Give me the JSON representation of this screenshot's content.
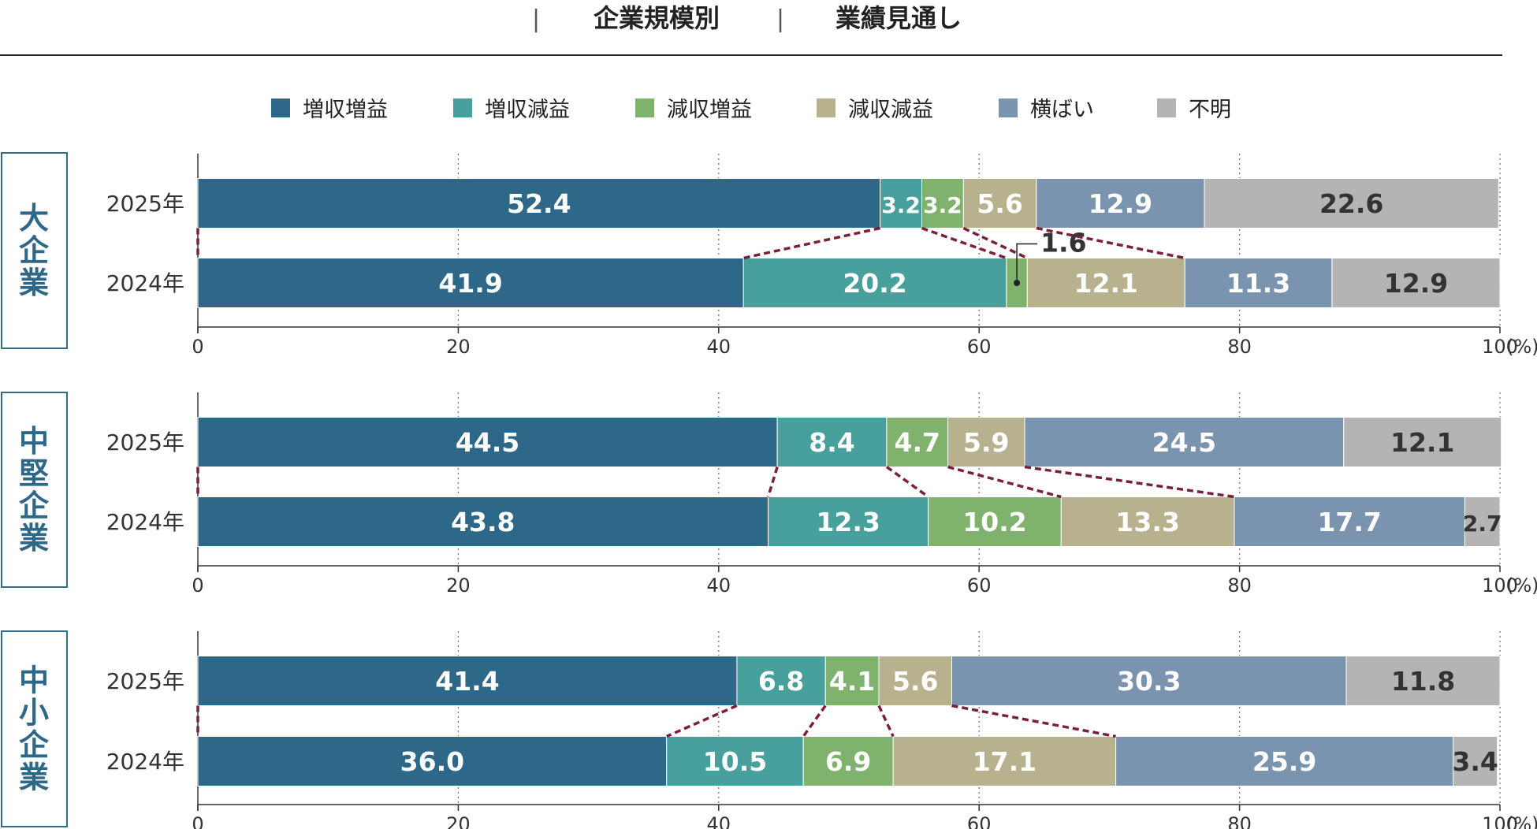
{
  "header": {
    "separator": "|",
    "title_left": "企業規模別",
    "title_right": "業績見通し"
  },
  "legend": [
    {
      "label": "増収増益",
      "color": "#2e6889"
    },
    {
      "label": "増収減益",
      "color": "#47a09c"
    },
    {
      "label": "減収増益",
      "color": "#7eb26d"
    },
    {
      "label": "減収減益",
      "color": "#b7b18e"
    },
    {
      "label": "横ばい",
      "color": "#7a93ae"
    },
    {
      "label": "不明",
      "color": "#b4b4b4"
    }
  ],
  "chart_data": {
    "type": "bar",
    "orientation": "horizontal",
    "stacked": true,
    "unit": "(%)",
    "xlim": [
      0,
      100
    ],
    "x_ticks": [
      "0",
      "20",
      "40",
      "60",
      "80",
      "100"
    ],
    "grid": "dotted-vertical",
    "connector_color": "#7a1f3d",
    "groups": [
      {
        "name": "大企業",
        "rows": [
          {
            "label": "2025年",
            "values": [
              52.4,
              3.2,
              3.2,
              5.6,
              12.9,
              22.6
            ],
            "labels": [
              "52.4",
              "3.2",
              "3.2",
              "5.6",
              "12.9",
              "22.6"
            ]
          },
          {
            "label": "2024年",
            "values": [
              41.9,
              20.2,
              1.6,
              12.1,
              11.3,
              12.9
            ],
            "labels": [
              "41.9",
              "20.2",
              "1.6",
              "12.1",
              "11.3",
              "12.9"
            ]
          }
        ]
      },
      {
        "name": "中堅企業",
        "rows": [
          {
            "label": "2025年",
            "values": [
              44.5,
              8.4,
              4.7,
              5.9,
              24.5,
              12.1
            ],
            "labels": [
              "44.5",
              "8.4",
              "4.7",
              "5.9",
              "24.5",
              "12.1"
            ]
          },
          {
            "label": "2024年",
            "values": [
              43.8,
              12.3,
              10.2,
              13.3,
              17.7,
              2.7
            ],
            "labels": [
              "43.8",
              "12.3",
              "10.2",
              "13.3",
              "17.7",
              "2.7"
            ]
          }
        ]
      },
      {
        "name": "中小企業",
        "rows": [
          {
            "label": "2025年",
            "values": [
              41.4,
              6.8,
              4.1,
              5.6,
              30.3,
              11.8
            ],
            "labels": [
              "41.4",
              "6.8",
              "4.1",
              "5.6",
              "30.3",
              "11.8"
            ]
          },
          {
            "label": "2024年",
            "values": [
              36.0,
              10.5,
              6.9,
              17.1,
              25.9,
              3.4
            ],
            "labels": [
              "36.0",
              "10.5",
              "6.9",
              "17.1",
              "25.9",
              "3.4"
            ]
          }
        ]
      }
    ]
  }
}
